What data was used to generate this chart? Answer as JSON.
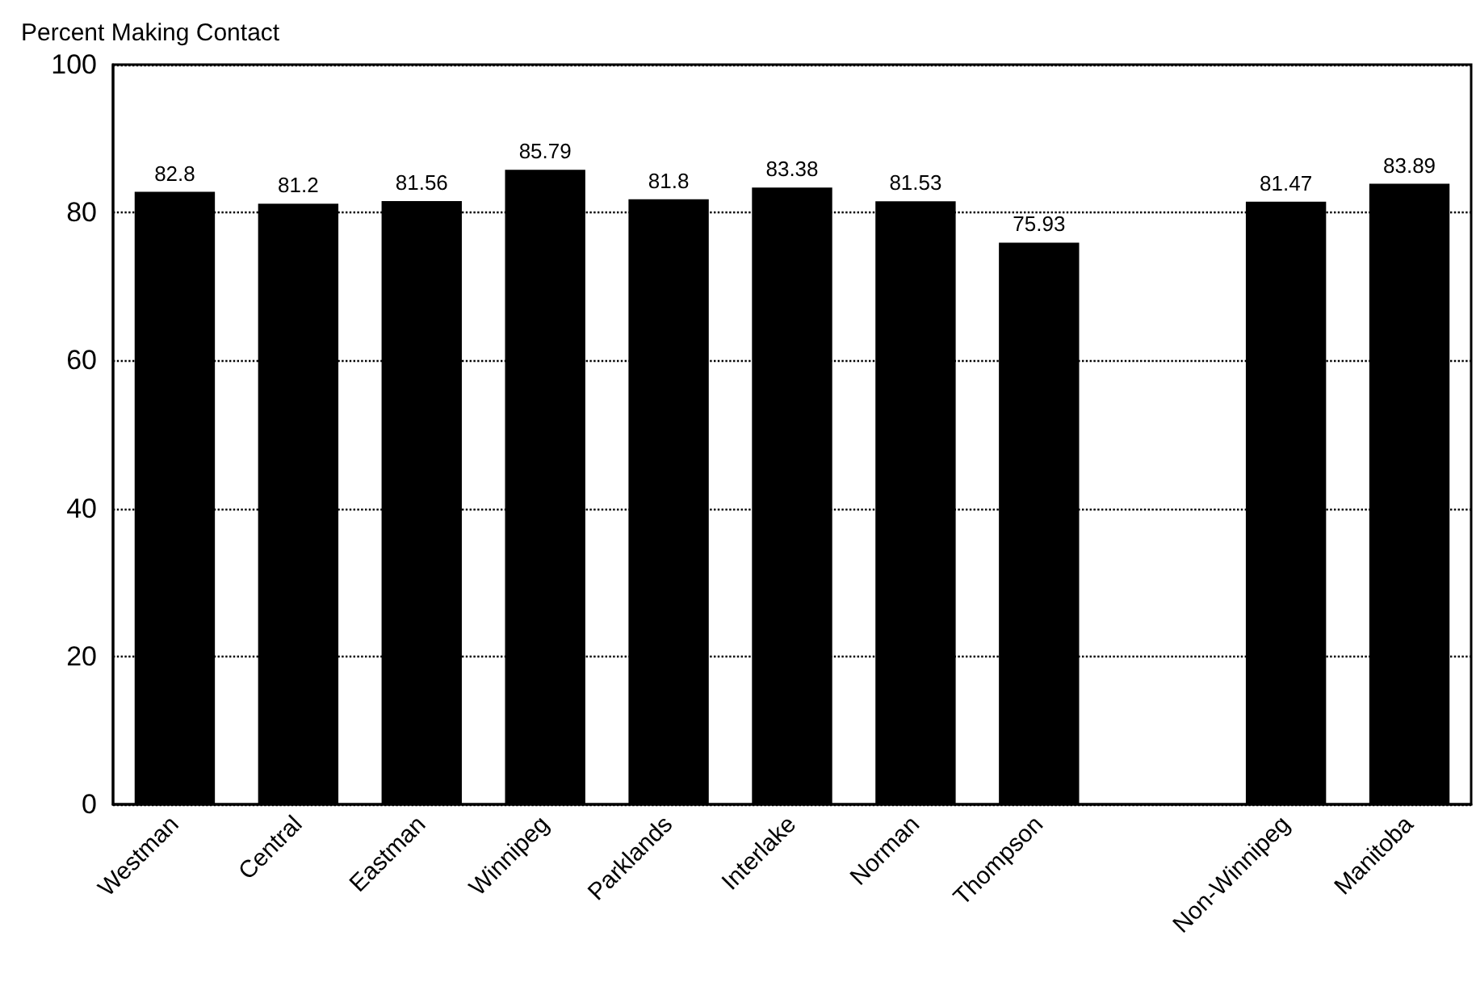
{
  "chart_data": {
    "type": "bar",
    "ylabel": "Percent Making Contact",
    "categories": [
      "Westman",
      "Central",
      "Eastman",
      "Winnipeg",
      "Parklands",
      "Interlake",
      "Norman",
      "Thompson",
      null,
      "Non-Winnipeg",
      "Manitoba"
    ],
    "values": [
      82.8,
      81.2,
      81.56,
      85.79,
      81.8,
      83.38,
      81.53,
      75.93,
      null,
      81.47,
      83.89
    ],
    "color": "#000000",
    "ylim": [
      0,
      100
    ],
    "yticks": [
      0,
      20,
      40,
      60,
      80,
      100
    ],
    "grid": "y",
    "data_labels": true
  }
}
